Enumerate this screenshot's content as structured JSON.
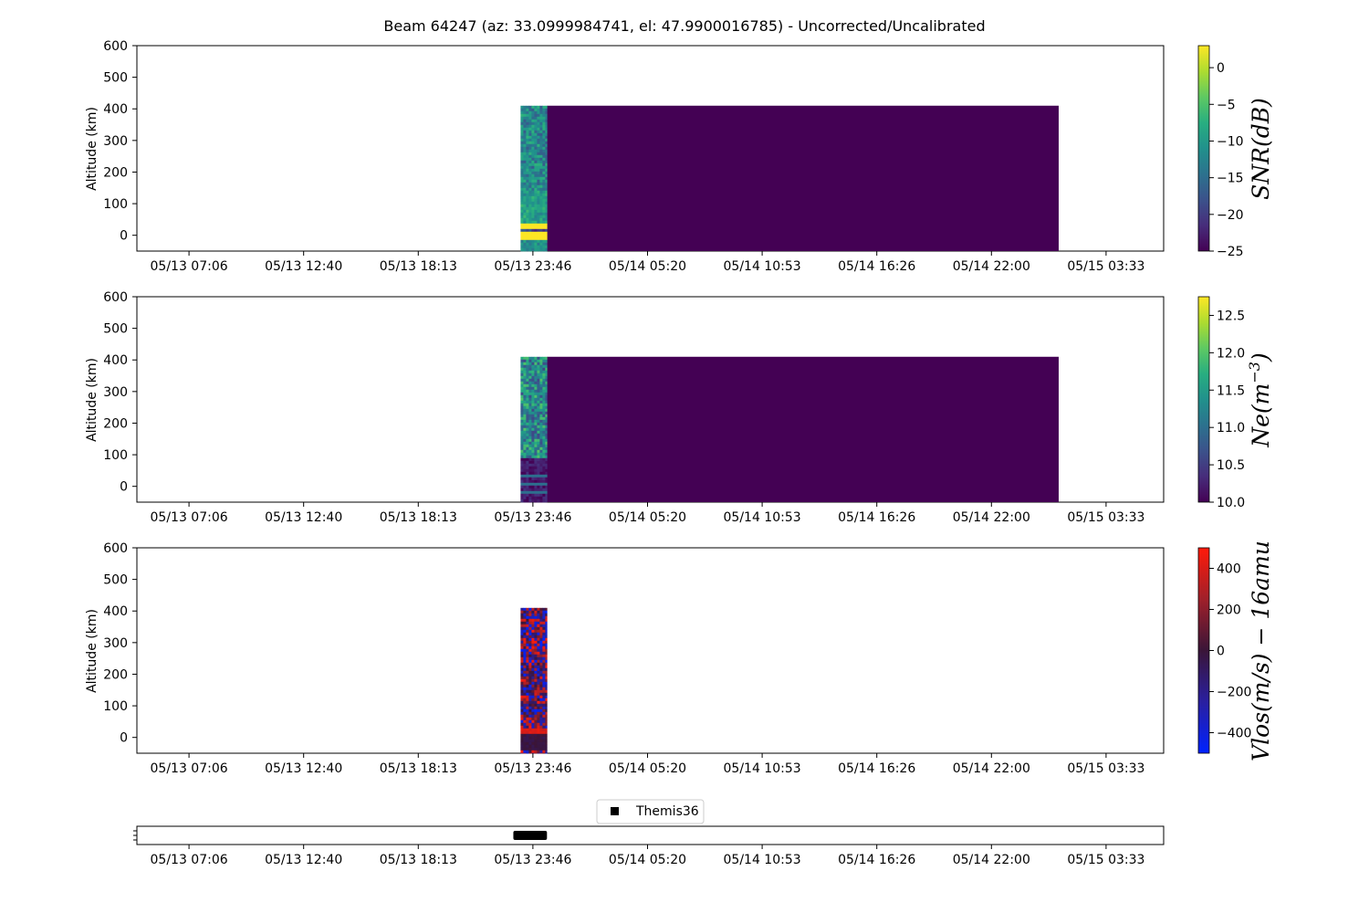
{
  "figure": {
    "title": "Beam 64247 (az: 33.0999984741, el: 47.9900016785) - Uncorrected/Uncalibrated"
  },
  "chart_data": [
    {
      "type": "heatmap",
      "id": "snr",
      "ylabel": "Altitude (km)",
      "ylim": [
        -50,
        600
      ],
      "yticks": [
        0,
        100,
        200,
        300,
        400,
        500,
        600
      ],
      "xticks": [
        "05/13 07:06",
        "05/13 12:40",
        "05/13 18:13",
        "05/13 23:46",
        "05/14 05:20",
        "05/14 10:53",
        "05/14 16:26",
        "05/14 22:00",
        "05/15 03:33"
      ],
      "colorbar": {
        "label": "SNR(dB)",
        "range": [
          -25,
          3
        ],
        "ticks": [
          0,
          -5,
          -10,
          -15,
          -20,
          -25
        ],
        "tick_labels": [
          "0",
          "−5",
          "−10",
          "−15",
          "−20",
          "−25"
        ],
        "colormap": "viridis"
      },
      "data": {
        "active_block": {
          "x_start": "05/13 23:12",
          "x_end": "05/14 00:29",
          "alt_range": [
            -50,
            410
          ],
          "pattern": "noisy green-teal scatter (approx. -8 to -15 dB) above 40 km, bright yellow bands (~3 dB) near 35 km and -10 to 15 km"
        },
        "fill_block": {
          "x_start": "05/14 00:29",
          "x_end": "05/15 01:20",
          "alt_range": [
            -50,
            410
          ],
          "value": -25
        }
      }
    },
    {
      "type": "heatmap",
      "id": "ne",
      "ylabel": "Altitude (km)",
      "ylim": [
        -50,
        600
      ],
      "yticks": [
        0,
        100,
        200,
        300,
        400,
        500,
        600
      ],
      "xticks": [
        "05/13 07:06",
        "05/13 12:40",
        "05/13 18:13",
        "05/13 23:46",
        "05/14 05:20",
        "05/14 10:53",
        "05/14 16:26",
        "05/14 22:00",
        "05/15 03:33"
      ],
      "colorbar": {
        "label": "Ne(m−3)",
        "label_main": "Ne(m",
        "label_sup": "−3",
        "label_end": ")",
        "range": [
          10.0,
          12.75
        ],
        "ticks": [
          12.5,
          12.0,
          11.5,
          11.0,
          10.5,
          10.0
        ],
        "tick_labels": [
          "12.5",
          "12.0",
          "11.5",
          "11.0",
          "10.5",
          "10.0"
        ],
        "colormap": "viridis"
      },
      "data": {
        "active_block": {
          "x_start": "05/13 23:12",
          "x_end": "05/14 00:29",
          "alt_range": [
            -50,
            410
          ],
          "pattern": "noisy green-teal scatter (approx. 11.2 to 12.0) above 90 km, thin teal stripes near 35, 15 and -15 km"
        },
        "fill_block": {
          "x_start": "05/14 00:29",
          "x_end": "05/15 01:20",
          "alt_range": [
            -50,
            410
          ],
          "value": 10.0
        }
      }
    },
    {
      "type": "heatmap",
      "id": "vlos",
      "ylabel": "Altitude (km)",
      "ylim": [
        -50,
        600
      ],
      "yticks": [
        0,
        100,
        200,
        300,
        400,
        500,
        600
      ],
      "xticks": [
        "05/13 07:06",
        "05/13 12:40",
        "05/13 18:13",
        "05/13 23:46",
        "05/14 05:20",
        "05/14 10:53",
        "05/14 16:26",
        "05/14 22:00",
        "05/15 03:33"
      ],
      "colorbar": {
        "label": "Vlos(m/s) − 16amu",
        "range": [
          -500,
          500
        ],
        "ticks": [
          400,
          200,
          0,
          -200,
          -400
        ],
        "tick_labels": [
          "400",
          "200",
          "0",
          "−200",
          "−400"
        ],
        "colormap": "blue-dark-red"
      },
      "data": {
        "active_block": {
          "x_start": "05/13 23:12",
          "x_end": "05/14 00:29",
          "alt_range": [
            -50,
            410
          ],
          "pattern": "noisy red/blue speckle (approx. -500 to 500 m/s), dark purple near 0 km, red band near 25 km"
        }
      }
    },
    {
      "type": "scatter",
      "id": "legend-strip",
      "xticks": [
        "05/13 07:06",
        "05/13 12:40",
        "05/13 18:13",
        "05/13 23:46",
        "05/14 05:20",
        "05/14 10:53",
        "05/14 16:26",
        "05/14 22:00",
        "05/15 03:33"
      ],
      "series": [
        {
          "name": "Themis36",
          "marker": "square",
          "color": "#000000",
          "x_start": "05/13 22:51",
          "x_end": "05/14 00:29"
        }
      ]
    }
  ]
}
